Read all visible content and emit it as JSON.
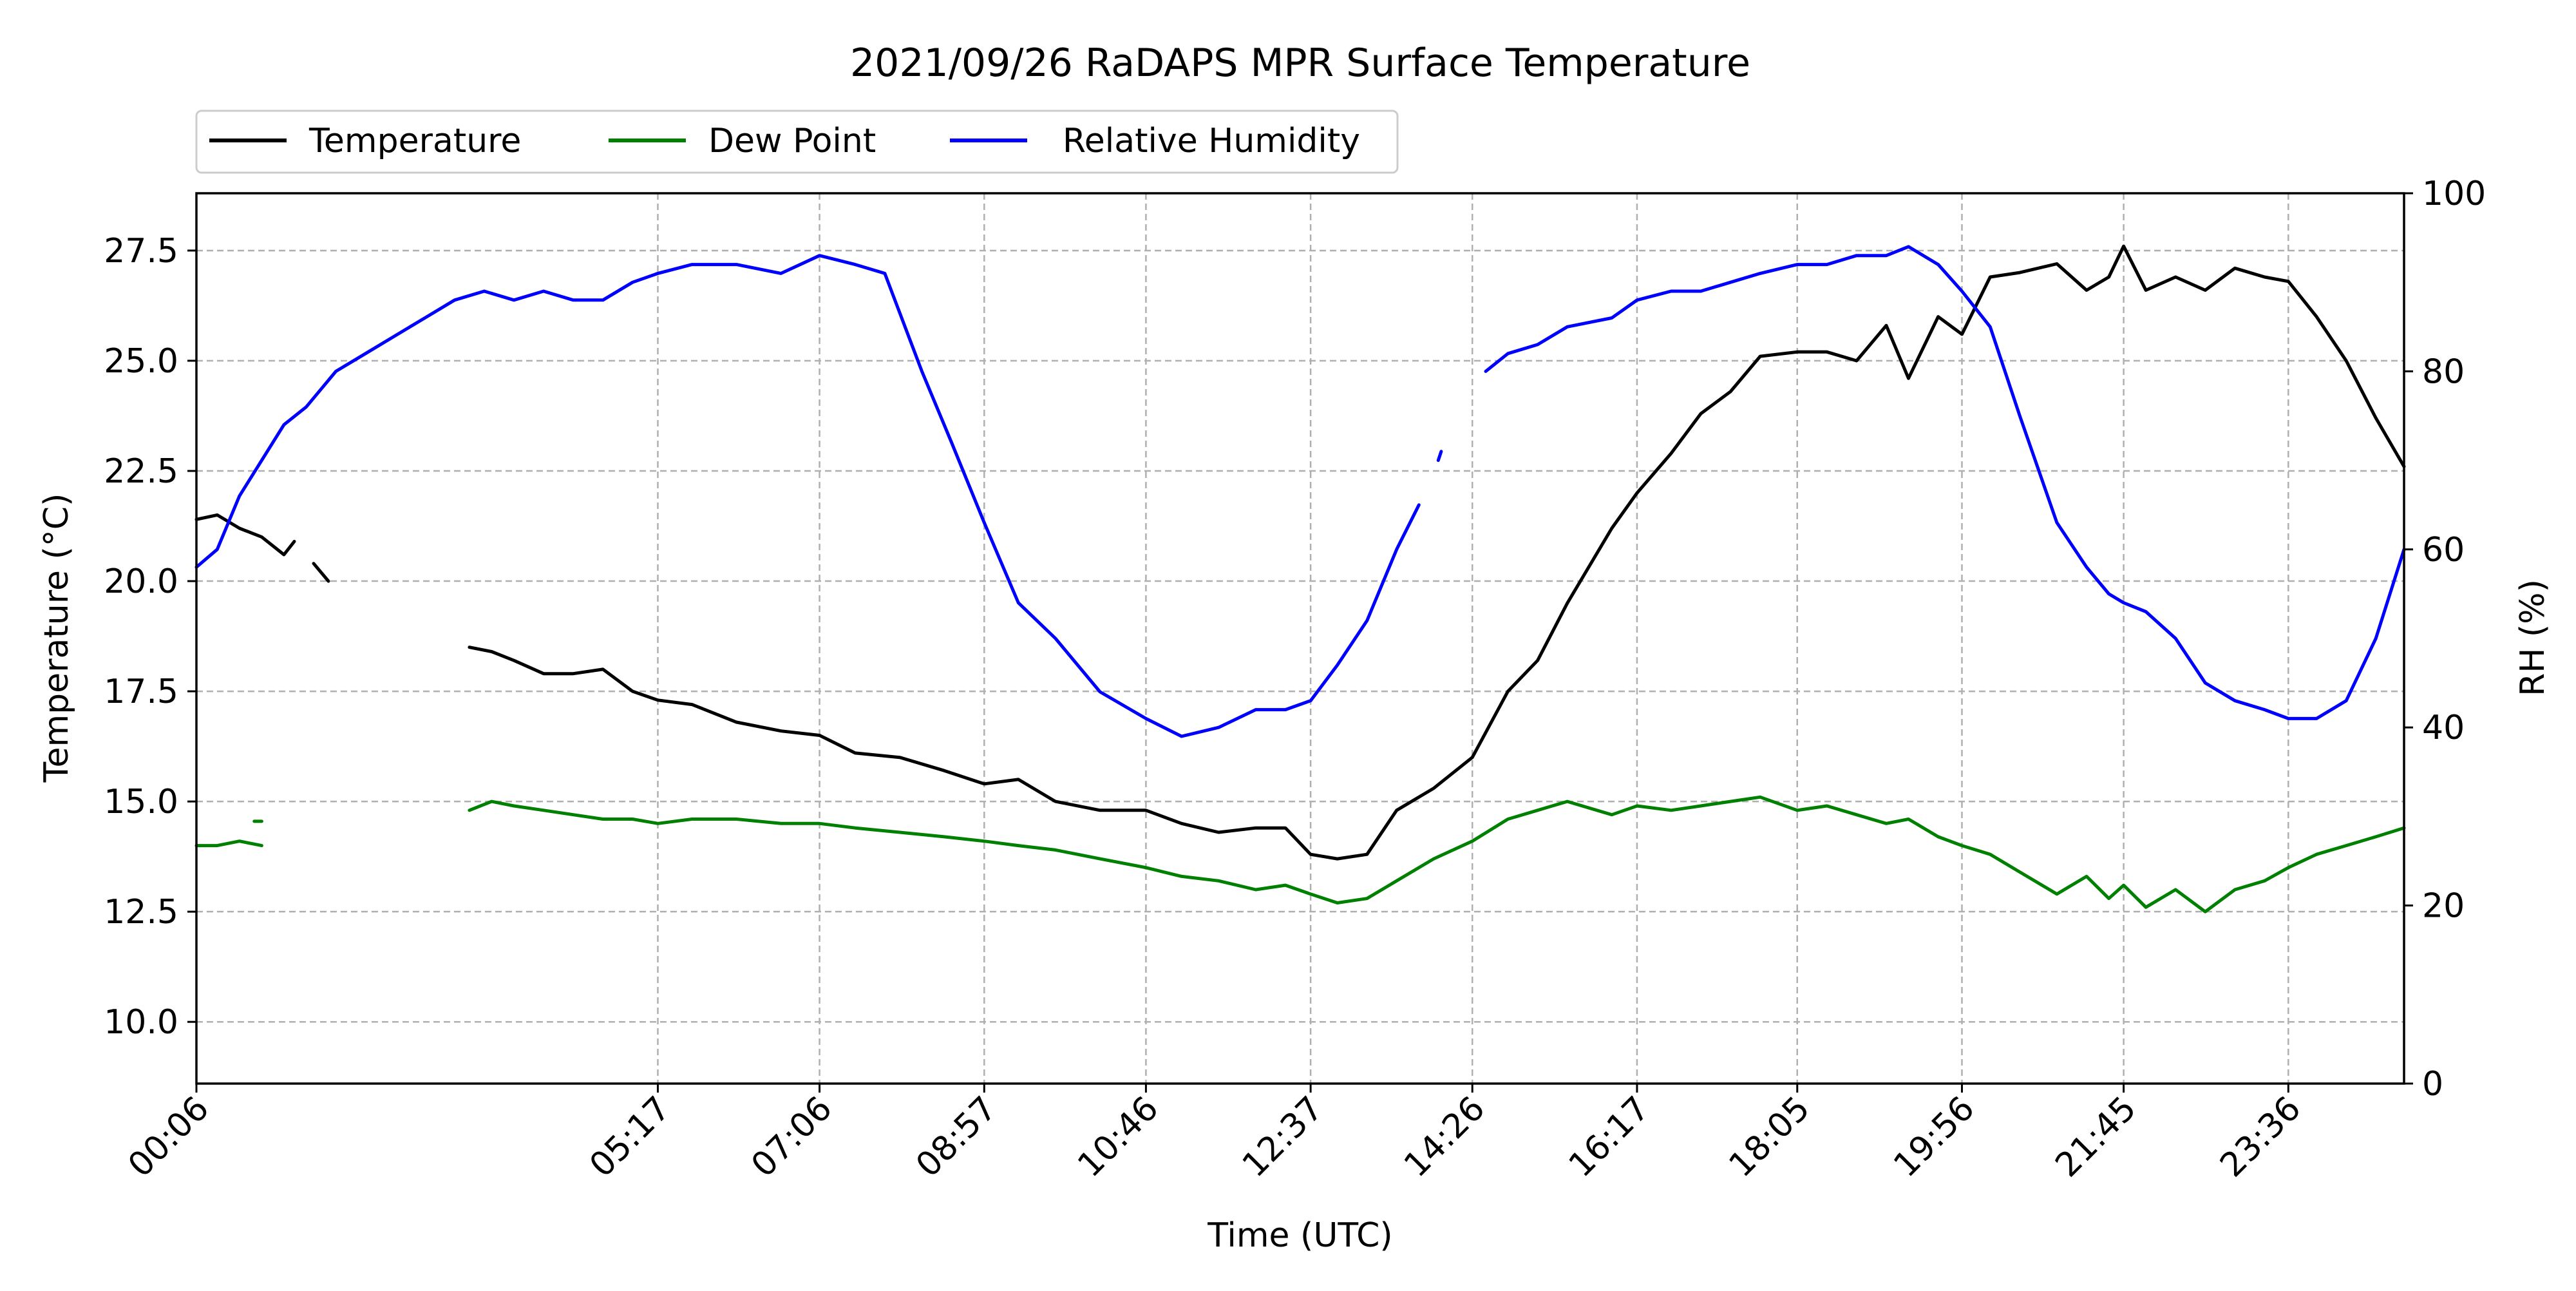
{
  "chart_data": {
    "type": "line",
    "title": "2021/09/26 RaDAPS MPR Surface Temperature",
    "xlabel": "Time (UTC)",
    "ylabel": "Temperature ($^\\circ$C)",
    "ylabel_display": "Temperature (°C)",
    "y2label": "RH (%)",
    "xlim": [
      "00:06",
      "24:54"
    ],
    "ylim": [
      8.6,
      28.8
    ],
    "y2lim": [
      0,
      100
    ],
    "x_ticks": [
      "00:06",
      "05:17",
      "07:06",
      "08:57",
      "10:46",
      "12:37",
      "14:26",
      "16:17",
      "18:05",
      "19:56",
      "21:45",
      "23:36"
    ],
    "y_ticks": [
      "10.0",
      "12.5",
      "15.0",
      "17.5",
      "20.0",
      "22.5",
      "25.0",
      "27.5"
    ],
    "y2_ticks": [
      "0",
      "20",
      "40",
      "60",
      "80",
      "100"
    ],
    "grid": true,
    "legend_position": "top-left, above plot",
    "series": [
      {
        "name": "Temperature",
        "axis": "left",
        "color": "#000000",
        "segments": [
          {
            "x": [
              "00:06",
              "00:20",
              "00:35",
              "00:50",
              "01:05",
              "01:12"
            ],
            "y": [
              21.4,
              21.5,
              21.2,
              21.0,
              20.6,
              20.9
            ]
          },
          {
            "x": [
              "01:25",
              "01:35"
            ],
            "y": [
              20.4,
              20.0
            ]
          },
          {
            "x": [
              "03:10",
              "03:25",
              "03:40",
              "04:00",
              "04:20",
              "04:40",
              "05:00",
              "05:17",
              "05:40",
              "06:10",
              "06:40",
              "07:06",
              "07:30",
              "08:00",
              "08:30",
              "08:57",
              "09:20",
              "09:45",
              "10:15",
              "10:46",
              "11:10",
              "11:35",
              "12:00",
              "12:20",
              "12:37",
              "12:55",
              "13:15",
              "13:35",
              "14:00",
              "14:26",
              "14:50",
              "15:10",
              "15:30",
              "16:00",
              "16:17",
              "16:40",
              "17:00",
              "17:20",
              "17:40",
              "18:05",
              "18:25",
              "18:45",
              "19:05",
              "19:20",
              "19:40",
              "19:56",
              "20:15",
              "20:35",
              "21:00",
              "21:20",
              "21:35",
              "21:45",
              "22:00",
              "22:20",
              "22:40",
              "23:00",
              "23:20",
              "23:36",
              "23:55",
              "24:15",
              "24:35",
              "24:54"
            ],
            "y": [
              18.5,
              18.4,
              18.2,
              17.9,
              17.9,
              18.0,
              17.5,
              17.3,
              17.2,
              16.8,
              16.6,
              16.5,
              16.1,
              16.0,
              15.7,
              15.4,
              15.5,
              15.0,
              14.8,
              14.8,
              14.5,
              14.3,
              14.4,
              14.4,
              13.8,
              13.7,
              13.8,
              14.8,
              15.3,
              16.0,
              17.5,
              18.2,
              19.5,
              21.2,
              22.0,
              22.9,
              23.8,
              24.3,
              25.1,
              25.2,
              25.2,
              25.0,
              25.8,
              24.6,
              26.0,
              25.6,
              26.9,
              27.0,
              27.2,
              26.6,
              26.9,
              27.6,
              26.6,
              26.9,
              26.6,
              27.1,
              26.9,
              26.8,
              26.0,
              25.0,
              23.7,
              22.6
            ]
          }
        ]
      },
      {
        "name": "Dew Point",
        "axis": "left",
        "color": "#008000",
        "segments": [
          {
            "x": [
              "00:06",
              "00:20",
              "00:35",
              "00:50"
            ],
            "y": [
              14.0,
              14.0,
              14.1,
              14.0
            ]
          },
          {
            "x": [
              "00:45",
              "00:50"
            ],
            "y": [
              14.55,
              14.55
            ]
          },
          {
            "x": [
              "03:10",
              "03:25",
              "03:40",
              "04:00",
              "04:20",
              "04:40",
              "05:00",
              "05:17",
              "05:40",
              "06:10",
              "06:40",
              "07:06",
              "07:30",
              "08:00",
              "08:30",
              "08:57",
              "09:20",
              "09:45",
              "10:15",
              "10:46",
              "11:10",
              "11:35",
              "12:00",
              "12:20",
              "12:37",
              "12:55",
              "13:15",
              "13:35",
              "14:00",
              "14:26",
              "14:50",
              "15:10",
              "15:30",
              "16:00",
              "16:17",
              "16:40",
              "17:00",
              "17:20",
              "17:40",
              "18:05",
              "18:25",
              "18:45",
              "19:05",
              "19:20",
              "19:40",
              "19:56",
              "20:15",
              "20:35",
              "21:00",
              "21:20",
              "21:35",
              "21:45",
              "22:00",
              "22:20",
              "22:40",
              "23:00",
              "23:20",
              "23:36",
              "23:55",
              "24:15",
              "24:35",
              "24:54"
            ],
            "y": [
              14.8,
              15.0,
              14.9,
              14.8,
              14.7,
              14.6,
              14.6,
              14.5,
              14.6,
              14.6,
              14.5,
              14.5,
              14.4,
              14.3,
              14.2,
              14.1,
              14.0,
              13.9,
              13.7,
              13.5,
              13.3,
              13.2,
              13.0,
              13.1,
              12.9,
              12.7,
              12.8,
              13.2,
              13.7,
              14.1,
              14.6,
              14.8,
              15.0,
              14.7,
              14.9,
              14.8,
              14.9,
              15.0,
              15.1,
              14.8,
              14.9,
              14.7,
              14.5,
              14.6,
              14.2,
              14.0,
              13.8,
              13.4,
              12.9,
              13.3,
              12.8,
              13.1,
              12.6,
              13.0,
              12.5,
              13.0,
              13.2,
              13.5,
              13.8,
              14.0,
              14.2,
              14.4
            ]
          }
        ]
      },
      {
        "name": "Relative Humidity",
        "axis": "right",
        "color": "#0000ff",
        "segments": [
          {
            "x": [
              "00:06",
              "00:20",
              "00:35",
              "00:50",
              "01:05",
              "01:20",
              "01:40",
              "02:00",
              "02:20",
              "02:40",
              "03:00",
              "03:20",
              "03:40",
              "04:00",
              "04:20",
              "04:40",
              "05:00",
              "05:17",
              "05:40",
              "06:10",
              "06:40",
              "07:06",
              "07:30",
              "07:50",
              "08:15",
              "08:35",
              "08:57",
              "09:20",
              "09:45",
              "10:15",
              "10:46",
              "11:10",
              "11:35",
              "12:00",
              "12:20",
              "12:37",
              "12:55",
              "13:15",
              "13:35",
              "13:50"
            ],
            "y": [
              58,
              60,
              66,
              70,
              74,
              76,
              80,
              82,
              84,
              86,
              88,
              89,
              88,
              89,
              88,
              88,
              90,
              91,
              92,
              92,
              91,
              93,
              92,
              91,
              80,
              72,
              63,
              54,
              50,
              44,
              41,
              39,
              40,
              42,
              42,
              43,
              47,
              52,
              60,
              65
            ]
          },
          {
            "x": [
              "14:03",
              "14:05"
            ],
            "y": [
              70,
              71
            ]
          },
          {
            "x": [
              "14:35",
              "14:50",
              "15:10",
              "15:30",
              "16:00",
              "16:17",
              "16:40",
              "17:00",
              "17:20",
              "17:40",
              "18:05",
              "18:25",
              "18:45",
              "19:05",
              "19:20",
              "19:40",
              "19:56",
              "20:15",
              "20:35",
              "21:00",
              "21:20",
              "21:35",
              "21:45",
              "22:00",
              "22:20",
              "22:40",
              "23:00",
              "23:20",
              "23:36",
              "23:55",
              "24:15",
              "24:35",
              "24:54"
            ],
            "y": [
              80,
              82,
              83,
              85,
              86,
              88,
              89,
              89,
              90,
              91,
              92,
              92,
              93,
              93,
              94,
              92,
              89,
              85,
              75,
              63,
              58,
              55,
              54,
              53,
              50,
              45,
              43,
              42,
              41,
              41,
              43,
              50,
              60
            ]
          }
        ]
      }
    ]
  }
}
